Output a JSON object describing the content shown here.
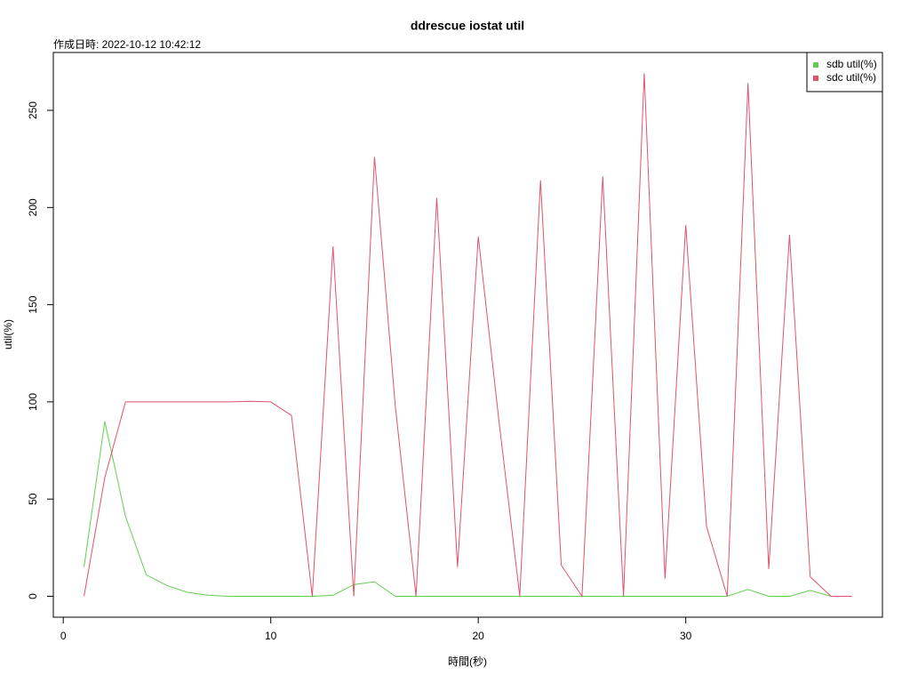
{
  "chart_data": {
    "type": "line",
    "title": "ddrescue iostat util",
    "subtitle": "作成日時: 2022-10-12 10:42:12",
    "x_label": "時間(秒)",
    "y_label": "util(%)",
    "x": [
      1,
      2,
      3,
      4,
      5,
      6,
      7,
      8,
      9,
      10,
      11,
      12,
      13,
      14,
      15,
      16,
      17,
      18,
      19,
      20,
      21,
      22,
      23,
      24,
      25,
      26,
      27,
      28,
      29,
      30,
      31,
      32,
      33,
      34,
      35,
      36,
      37,
      38
    ],
    "series": [
      {
        "name": "sdb util(%)",
        "color": "#61D04F",
        "values": [
          15,
          90,
          41,
          11,
          5.5,
          2,
          0.5,
          0,
          0,
          0,
          0,
          0,
          0.5,
          6,
          7.5,
          0,
          0,
          0,
          0,
          0,
          0,
          0,
          0,
          0,
          0,
          0,
          0,
          0,
          0,
          0,
          0,
          0,
          3.5,
          0,
          0,
          3,
          0,
          0
        ]
      },
      {
        "name": "sdc util(%)",
        "color": "#DF536B",
        "values": [
          0,
          61,
          100,
          100,
          100,
          100,
          100,
          100,
          100.3,
          100,
          93,
          0,
          180,
          0,
          226,
          98,
          0,
          205,
          15,
          185,
          90,
          0,
          214,
          16,
          0,
          216,
          0,
          269,
          9,
          191,
          36,
          0,
          264,
          14,
          186,
          10,
          0,
          0
        ]
      }
    ],
    "xlim": [
      -0.48,
      39.48
    ],
    "xticks": [
      0,
      10,
      20,
      30
    ],
    "ylim": [
      -10.76,
      279.76
    ],
    "yticks": [
      0,
      50,
      100,
      150,
      200,
      250
    ],
    "legend": "topright"
  }
}
